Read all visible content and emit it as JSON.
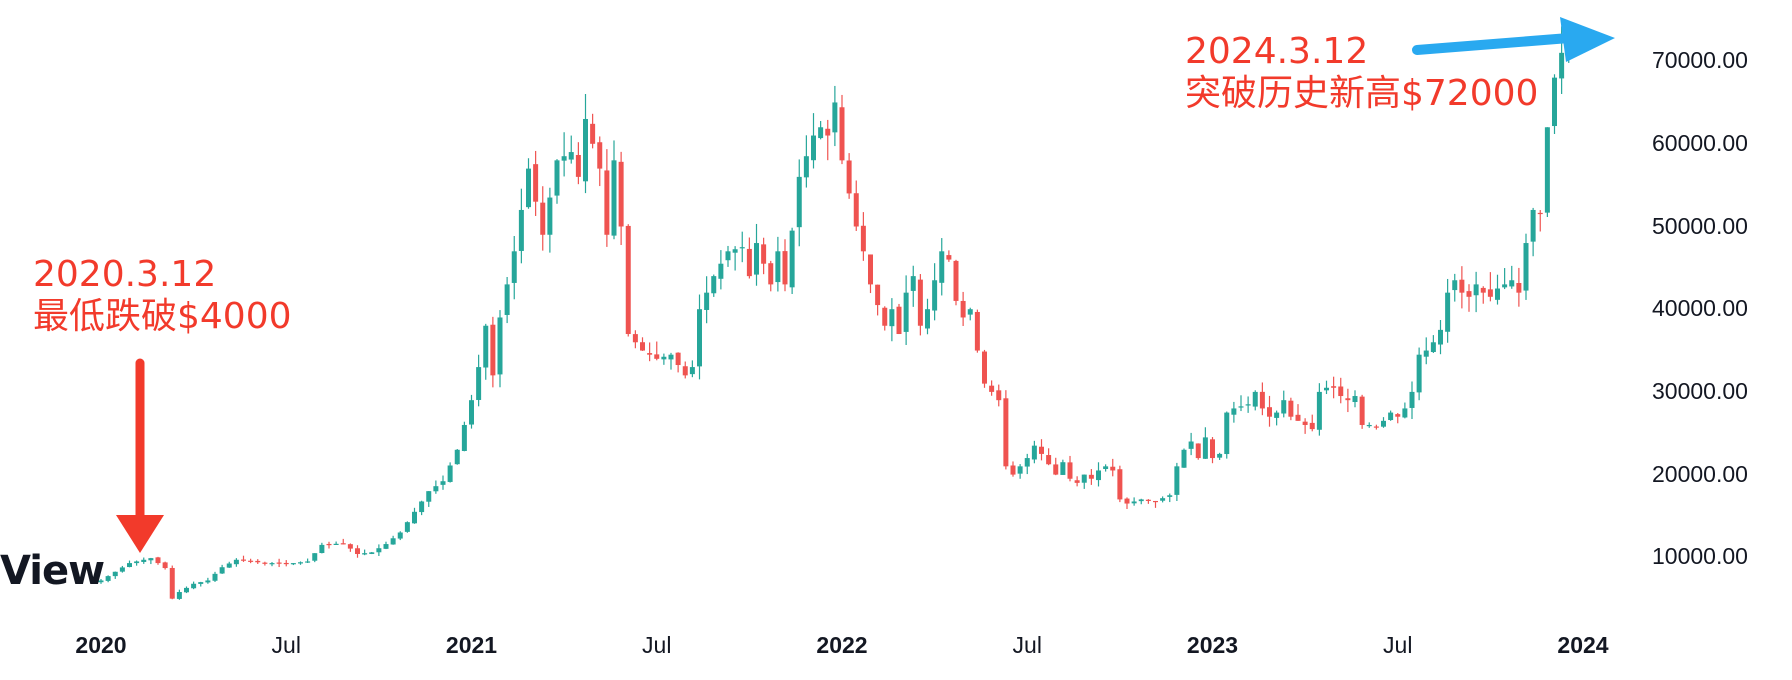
{
  "watermark": "View",
  "annotations": {
    "low": {
      "date": "2020.3.12",
      "text": "最低跌破$4000",
      "color": "#f23a2b"
    },
    "high": {
      "date": "2024.3.12",
      "text": "突破历史新高$72000",
      "color": "#f23a2b"
    }
  },
  "colors": {
    "up": "#26a69a",
    "down": "#ef5350",
    "low_arrow": "#f23a2b",
    "high_arrow": "#29a9f0",
    "text": "#131722"
  },
  "chart_data": {
    "type": "candlestick",
    "title": "",
    "x_unit": "weeks since 2020-01-01",
    "y_ticks": [
      "10000.00",
      "20000.00",
      "30000.00",
      "40000.00",
      "50000.00",
      "60000.00",
      "70000.00"
    ],
    "y_tick_values": [
      10000,
      20000,
      30000,
      40000,
      50000,
      60000,
      70000
    ],
    "x_ticks": [
      {
        "label": "2020",
        "t": 0,
        "bold": true
      },
      {
        "label": "Jul",
        "t": 26,
        "bold": false
      },
      {
        "label": "2021",
        "t": 52,
        "bold": true
      },
      {
        "label": "Jul",
        "t": 78,
        "bold": false
      },
      {
        "label": "2022",
        "t": 104,
        "bold": true
      },
      {
        "label": "Jul",
        "t": 130,
        "bold": false
      },
      {
        "label": "2023",
        "t": 156,
        "bold": true
      },
      {
        "label": "Jul",
        "t": 182,
        "bold": false
      },
      {
        "label": "2024",
        "t": 208,
        "bold": true
      }
    ],
    "ylim": [
      0,
      80000
    ],
    "xlim": [
      0,
      225
    ],
    "grid": false,
    "close_anchors": [
      [
        0,
        7200
      ],
      [
        4,
        9300
      ],
      [
        7,
        9900
      ],
      [
        9,
        8700
      ],
      [
        10,
        5000
      ],
      [
        11,
        5800
      ],
      [
        13,
        6800
      ],
      [
        15,
        7200
      ],
      [
        17,
        8800
      ],
      [
        19,
        9700
      ],
      [
        22,
        9400
      ],
      [
        26,
        9200
      ],
      [
        29,
        9500
      ],
      [
        31,
        11500
      ],
      [
        34,
        11700
      ],
      [
        36,
        10400
      ],
      [
        38,
        10600
      ],
      [
        40,
        11600
      ],
      [
        42,
        13000
      ],
      [
        44,
        15500
      ],
      [
        46,
        18000
      ],
      [
        48,
        19200
      ],
      [
        50,
        23000
      ],
      [
        52,
        29000
      ],
      [
        53,
        33000
      ],
      [
        54,
        38000
      ],
      [
        55,
        32000
      ],
      [
        56,
        39000
      ],
      [
        58,
        47000
      ],
      [
        60,
        57000
      ],
      [
        62,
        49000
      ],
      [
        64,
        58000
      ],
      [
        66,
        59000
      ],
      [
        67,
        56000
      ],
      [
        68,
        63000
      ],
      [
        70,
        57000
      ],
      [
        71,
        49000
      ],
      [
        72,
        58000
      ],
      [
        73,
        50000
      ],
      [
        74,
        37000
      ],
      [
        76,
        35000
      ],
      [
        78,
        34000
      ],
      [
        80,
        34500
      ],
      [
        82,
        32000
      ],
      [
        83,
        33000
      ],
      [
        84,
        40000
      ],
      [
        86,
        44000
      ],
      [
        88,
        47000
      ],
      [
        90,
        47500
      ],
      [
        91,
        44000
      ],
      [
        92,
        48000
      ],
      [
        94,
        43000
      ],
      [
        95,
        47000
      ],
      [
        96,
        43000
      ],
      [
        98,
        56000
      ],
      [
        100,
        61000
      ],
      [
        101,
        62000
      ],
      [
        102,
        61000
      ],
      [
        103,
        65000
      ],
      [
        104,
        58000
      ],
      [
        105,
        54000
      ],
      [
        106,
        50000
      ],
      [
        107,
        47000
      ],
      [
        108,
        43000
      ],
      [
        110,
        38000
      ],
      [
        111,
        40000
      ],
      [
        112,
        37000
      ],
      [
        113,
        42000
      ],
      [
        114,
        44000
      ],
      [
        115,
        38000
      ],
      [
        116,
        40000
      ],
      [
        118,
        47000
      ],
      [
        119,
        46000
      ],
      [
        120,
        41000
      ],
      [
        121,
        39000
      ],
      [
        122,
        40000
      ],
      [
        123,
        35000
      ],
      [
        124,
        31000
      ],
      [
        125,
        30000
      ],
      [
        126,
        29000
      ],
      [
        127,
        21000
      ],
      [
        128,
        20000
      ],
      [
        129,
        21000
      ],
      [
        130,
        22000
      ],
      [
        131,
        23500
      ],
      [
        132,
        22500
      ],
      [
        134,
        20000
      ],
      [
        135,
        21500
      ],
      [
        136,
        19500
      ],
      [
        137,
        19000
      ],
      [
        138,
        20000
      ],
      [
        139,
        19500
      ],
      [
        140,
        20500
      ],
      [
        141,
        21000
      ],
      [
        142,
        20500
      ],
      [
        143,
        17000
      ],
      [
        144,
        16500
      ],
      [
        146,
        17000
      ],
      [
        148,
        16800
      ],
      [
        150,
        17500
      ],
      [
        151,
        21000
      ],
      [
        152,
        23000
      ],
      [
        153,
        24000
      ],
      [
        154,
        22000
      ],
      [
        155,
        24500
      ],
      [
        156,
        22000
      ],
      [
        157,
        22500
      ],
      [
        158,
        27500
      ],
      [
        159,
        28000
      ],
      [
        161,
        28500
      ],
      [
        162,
        30000
      ],
      [
        163,
        28000
      ],
      [
        164,
        27000
      ],
      [
        165,
        27500
      ],
      [
        166,
        29000
      ],
      [
        167,
        27000
      ],
      [
        168,
        26500
      ],
      [
        169,
        26000
      ],
      [
        170,
        25500
      ],
      [
        171,
        30000
      ],
      [
        172,
        30500
      ],
      [
        173,
        30500
      ],
      [
        174,
        29500
      ],
      [
        175,
        29000
      ],
      [
        176,
        29500
      ],
      [
        177,
        26000
      ],
      [
        178,
        26000
      ],
      [
        179,
        25800
      ],
      [
        180,
        26500
      ],
      [
        181,
        27500
      ],
      [
        182,
        27000
      ],
      [
        183,
        28000
      ],
      [
        184,
        30000
      ],
      [
        185,
        34500
      ],
      [
        186,
        35000
      ],
      [
        187,
        36000
      ],
      [
        188,
        37500
      ],
      [
        189,
        42000
      ],
      [
        190,
        43500
      ],
      [
        191,
        42000
      ],
      [
        192,
        41500
      ],
      [
        193,
        43000
      ],
      [
        194,
        42000
      ],
      [
        195,
        41500
      ],
      [
        196,
        42500
      ],
      [
        197,
        43000
      ],
      [
        198,
        43500
      ],
      [
        199,
        42000
      ],
      [
        200,
        48000
      ],
      [
        201,
        52000
      ],
      [
        202,
        51500
      ],
      [
        203,
        62000
      ],
      [
        204,
        68000
      ],
      [
        205,
        71000
      ],
      [
        206,
        72000
      ]
    ]
  }
}
